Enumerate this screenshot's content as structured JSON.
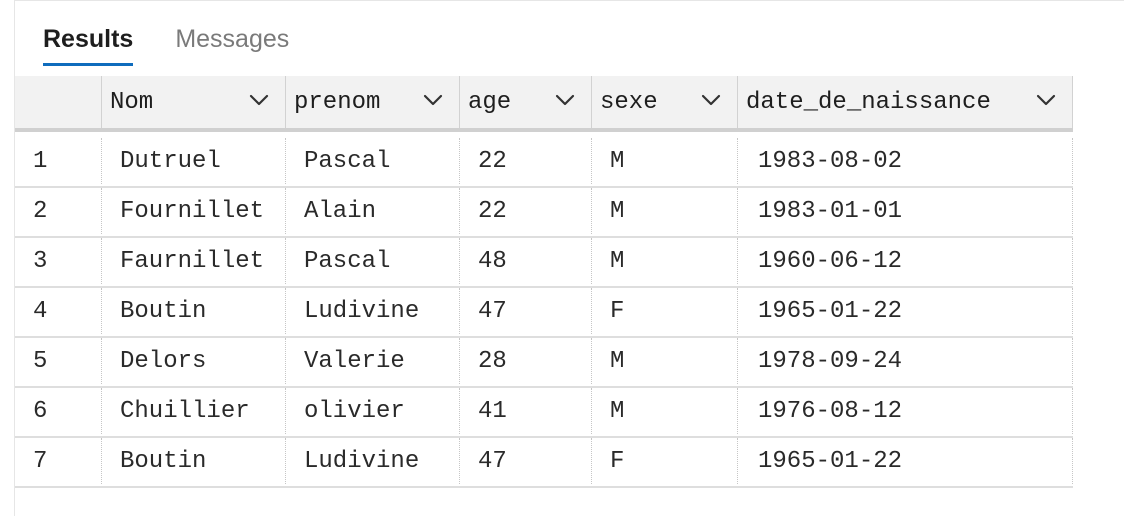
{
  "tabs": [
    {
      "label": "Results",
      "active": true
    },
    {
      "label": "Messages",
      "active": false
    }
  ],
  "columns": [
    "",
    "Nom",
    "prenom",
    "age",
    "sexe",
    "date_de_naissance"
  ],
  "rows": [
    [
      "1",
      "Dutruel",
      "Pascal",
      "22",
      "M",
      "1983-08-02"
    ],
    [
      "2",
      "Fournillet",
      "Alain",
      "22",
      "M",
      "1983-01-01"
    ],
    [
      "3",
      "Faurnillet",
      "Pascal",
      "48",
      "M",
      "1960-06-12"
    ],
    [
      "4",
      "Boutin",
      "Ludivine",
      "47",
      "F",
      "1965-01-22"
    ],
    [
      "5",
      "Delors",
      "Valerie",
      "28",
      "M",
      "1978-09-24"
    ],
    [
      "6",
      "Chuillier",
      "olivier",
      "41",
      "M",
      "1976-08-12"
    ],
    [
      "7",
      "Boutin",
      "Ludivine",
      "47",
      "F",
      "1965-01-22"
    ]
  ],
  "colors": {
    "accent": "#0f6cbd",
    "header_bg": "#f2f2f2"
  },
  "icons": {
    "sort": "chevron-down-icon"
  }
}
